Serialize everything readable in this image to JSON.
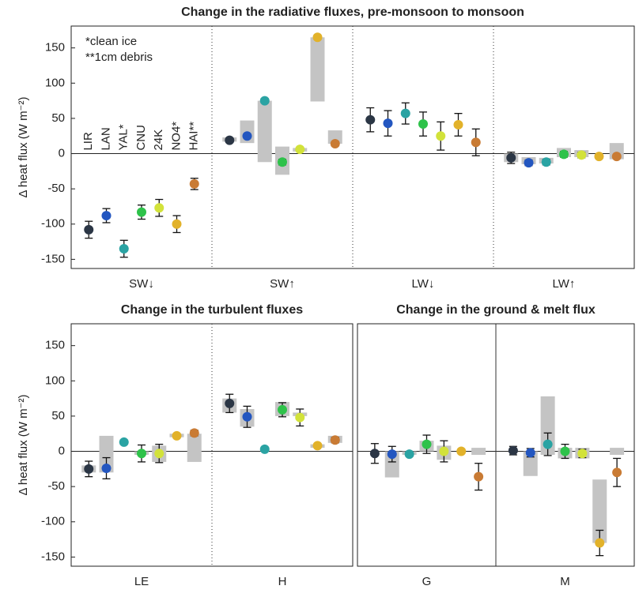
{
  "chart_data": [
    {
      "type": "dot",
      "title": "Change in the radiative fluxes, pre-monsoon to monsoon",
      "ylabel": "Δ heat flux (W m⁻²)",
      "annotations": [
        "*clean ice",
        "**1cm debris"
      ],
      "categories": [
        "SW↓",
        "SW↑",
        "LW↓",
        "LW↑"
      ],
      "separator": "dotted",
      "ylim": [
        -163,
        181
      ],
      "yticks": [
        -150,
        -100,
        -50,
        0,
        50,
        100,
        150
      ],
      "series": [
        {
          "name": "LIR",
          "color": "#2b3645",
          "values": [
            -108,
            19,
            48,
            -6
          ],
          "errors": [
            12,
            3,
            17,
            8
          ],
          "ranges": [
            null,
            [
              17,
              23
            ],
            null,
            [
              -12,
              0
            ]
          ]
        },
        {
          "name": "LAN",
          "color": "#2356c0",
          "values": [
            -88,
            25,
            43,
            -13
          ],
          "errors": [
            10,
            3,
            18,
            4
          ],
          "ranges": [
            null,
            [
              15,
              47
            ],
            null,
            [
              -15,
              -5
            ]
          ]
        },
        {
          "name": "YAL*",
          "color": "#2aa3a3",
          "values": [
            -135,
            75,
            57,
            -12
          ],
          "errors": [
            12,
            3,
            15,
            4
          ],
          "ranges": [
            null,
            [
              -12,
              75
            ],
            null,
            [
              -14,
              -6
            ]
          ]
        },
        {
          "name": "CNU",
          "color": "#2ec24a",
          "values": [
            -83,
            -12,
            42,
            -1
          ],
          "errors": [
            10,
            4,
            17,
            4
          ],
          "ranges": [
            null,
            [
              -30,
              10
            ],
            null,
            [
              -5,
              8
            ]
          ]
        },
        {
          "name": "24K",
          "color": "#d2e23a",
          "values": [
            -77,
            6,
            25,
            -2
          ],
          "errors": [
            12,
            2,
            20,
            4
          ],
          "ranges": [
            null,
            [
              3,
              8
            ],
            null,
            [
              -5,
              5
            ]
          ]
        },
        {
          "name": "NO4*",
          "color": "#e2b22a",
          "values": [
            -100,
            165,
            41,
            -4
          ],
          "errors": [
            12,
            3,
            16,
            2
          ],
          "ranges": [
            null,
            [
              74,
              165
            ],
            null,
            null
          ]
        },
        {
          "name": "HAI**",
          "color": "#c97b34",
          "values": [
            -43,
            14,
            16,
            -4
          ],
          "errors": [
            8,
            3,
            19,
            3
          ],
          "ranges": [
            null,
            [
              14,
              33
            ],
            null,
            [
              -8,
              15
            ]
          ]
        }
      ]
    },
    {
      "type": "dot",
      "title": "Change in the turbulent fluxes",
      "ylabel": "Δ heat flux (W m⁻²)",
      "categories": [
        "LE",
        "H"
      ],
      "separator": "dotted",
      "ylim": [
        -163,
        181
      ],
      "yticks": [
        -150,
        -100,
        -50,
        0,
        50,
        100,
        150
      ],
      "series": [
        {
          "color": "#2b3645",
          "values": [
            -25,
            68
          ],
          "errors": [
            11,
            13
          ],
          "ranges": [
            [
              -30,
              -20
            ],
            [
              55,
              75
            ]
          ]
        },
        {
          "color": "#2356c0",
          "values": [
            -24,
            49
          ],
          "errors": [
            15,
            15
          ],
          "ranges": [
            [
              -30,
              22
            ],
            [
              35,
              60
            ]
          ]
        },
        {
          "color": "#2aa3a3",
          "values": [
            13,
            3
          ],
          "errors": [
            3,
            2
          ],
          "ranges": [
            null,
            null
          ]
        },
        {
          "color": "#2ec24a",
          "values": [
            -3,
            59
          ],
          "errors": [
            12,
            10
          ],
          "ranges": [
            [
              -5,
              0
            ],
            [
              50,
              70
            ]
          ]
        },
        {
          "color": "#d2e23a",
          "values": [
            -3,
            48
          ],
          "errors": [
            13,
            12
          ],
          "ranges": [
            [
              -15,
              8
            ],
            [
              50,
              55
            ]
          ]
        },
        {
          "color": "#e2b22a",
          "values": [
            22,
            8
          ],
          "errors": [
            3,
            2
          ],
          "ranges": [
            [
              20,
              25
            ],
            [
              5,
              10
            ]
          ]
        },
        {
          "color": "#c97b34",
          "values": [
            26,
            16
          ],
          "errors": [
            4,
            4
          ],
          "ranges": [
            [
              -15,
              25
            ],
            [
              12,
              22
            ]
          ]
        }
      ]
    },
    {
      "type": "dot",
      "title": "Change in the ground & melt flux",
      "categories": [
        "G",
        "M"
      ],
      "separator": "solid",
      "ylim": [
        -163,
        181
      ],
      "series": [
        {
          "color": "#2b3645",
          "values": [
            -3,
            1
          ],
          "errors": [
            14,
            6
          ],
          "ranges": [
            null,
            null
          ]
        },
        {
          "color": "#2356c0",
          "values": [
            -4,
            -2
          ],
          "errors": [
            11,
            6
          ],
          "ranges": [
            [
              -37,
              0
            ],
            [
              -35,
              0
            ]
          ]
        },
        {
          "color": "#2aa3a3",
          "values": [
            -4,
            10
          ],
          "errors": [
            3,
            16
          ],
          "ranges": [
            [
              -5,
              0
            ],
            [
              -5,
              78
            ]
          ]
        },
        {
          "color": "#2ec24a",
          "values": [
            10,
            0
          ],
          "errors": [
            13,
            10
          ],
          "ranges": [
            [
              0,
              15
            ],
            [
              -10,
              5
            ]
          ]
        },
        {
          "color": "#d2e23a",
          "values": [
            0,
            -3
          ],
          "errors": [
            15,
            6
          ],
          "ranges": [
            [
              -12,
              8
            ],
            [
              -10,
              5
            ]
          ]
        },
        {
          "color": "#e2b22a",
          "values": [
            0,
            -130
          ],
          "errors": [
            1,
            18
          ],
          "ranges": [
            null,
            [
              -130,
              -40
            ]
          ]
        },
        {
          "color": "#c97b34",
          "values": [
            -36,
            -30
          ],
          "errors": [
            19,
            20
          ],
          "ranges": [
            [
              -5,
              5
            ],
            [
              -5,
              5
            ]
          ]
        }
      ]
    }
  ]
}
